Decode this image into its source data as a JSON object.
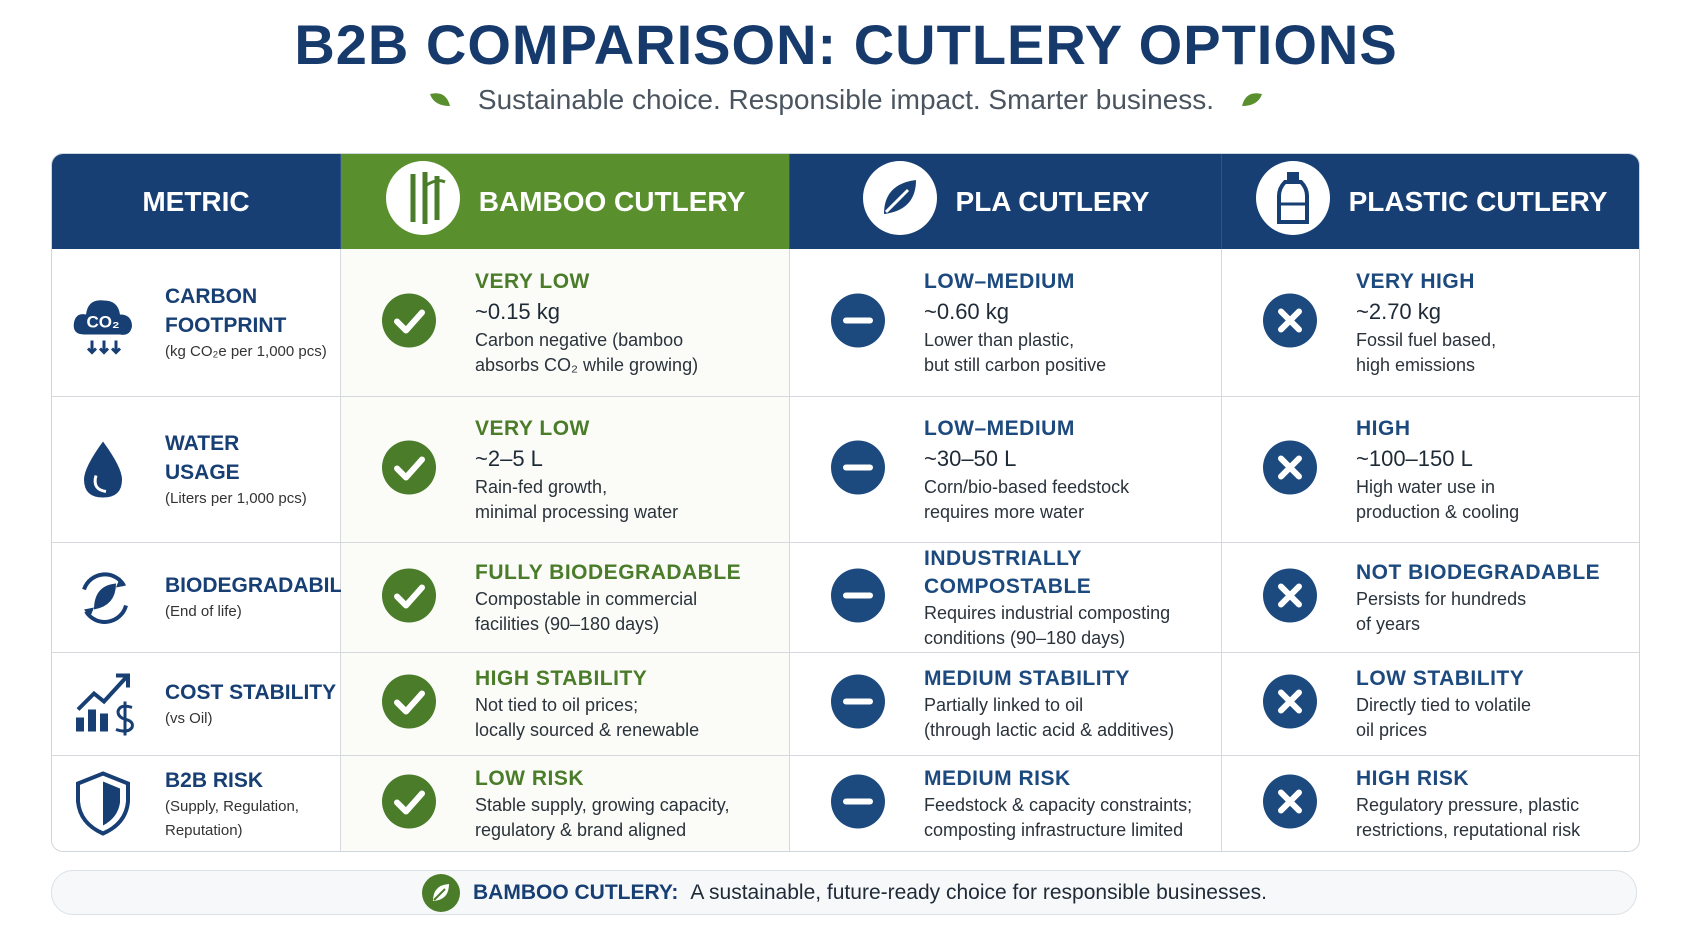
{
  "header": {
    "title": "B2B COMPARISON: CUTLERY OPTIONS",
    "subtitle": "Sustainable choice. Responsible impact. Smarter business."
  },
  "table": {
    "columns": [
      "METRIC",
      "BAMBOO CUTLERY",
      "PLA CUTLERY",
      "PLASTIC CUTLERY"
    ],
    "rows": [
      {
        "metric": [
          "CARBON",
          "FOOTPRINT"
        ],
        "unit": [
          "(kg CO₂e per 1,000 pcs)"
        ],
        "icon_text": "CO₂",
        "cells": [
          {
            "rating": "VERY LOW",
            "value": "~0.15 kg",
            "note": [
              "Carbon negative (bamboo",
              "absorbs CO₂ while growing)"
            ]
          },
          {
            "rating": "LOW–MEDIUM",
            "value": "~0.60 kg",
            "note": [
              "Lower than plastic,",
              "but still carbon positive"
            ]
          },
          {
            "rating": "VERY HIGH",
            "value": "~2.70 kg",
            "note": [
              "Fossil fuel based,",
              "high emissions"
            ]
          }
        ]
      },
      {
        "metric": [
          "WATER",
          "USAGE"
        ],
        "unit": [
          "(Liters per 1,000 pcs)"
        ],
        "cells": [
          {
            "rating": "VERY LOW",
            "value": "~2–5 L",
            "note": [
              "Rain-fed growth,",
              "minimal processing water"
            ]
          },
          {
            "rating": "LOW–MEDIUM",
            "value": "~30–50 L",
            "note": [
              "Corn/bio-based feedstock",
              "requires more water"
            ]
          },
          {
            "rating": "HIGH",
            "value": "~100–150 L",
            "note": [
              "High water use in",
              "production & cooling"
            ]
          }
        ]
      },
      {
        "metric": [
          "BIODEGRADABILITY"
        ],
        "unit": [
          "(End of life)"
        ],
        "cells": [
          {
            "rating": "FULLY BIODEGRADABLE",
            "note": [
              "Compostable in commercial",
              "facilities (90–180 days)"
            ]
          },
          {
            "rating": "INDUSTRIALLY COMPOSTABLE",
            "note": [
              "Requires industrial composting",
              "conditions (90–180 days)"
            ]
          },
          {
            "rating": "NOT BIODEGRADABLE",
            "note": [
              "Persists for hundreds",
              "of years"
            ]
          }
        ]
      },
      {
        "metric": [
          "COST STABILITY"
        ],
        "unit": [
          "(vs Oil)"
        ],
        "cells": [
          {
            "rating": "HIGH STABILITY",
            "note": [
              "Not tied to oil prices;",
              "locally sourced & renewable"
            ]
          },
          {
            "rating": "MEDIUM STABILITY",
            "note": [
              "Partially linked to oil",
              "(through lactic acid & additives)"
            ]
          },
          {
            "rating": "LOW STABILITY",
            "note": [
              "Directly tied to volatile",
              "oil prices"
            ]
          }
        ]
      },
      {
        "metric": [
          "B2B RISK"
        ],
        "unit": [
          "(Supply, Regulation,",
          "Reputation)"
        ],
        "cells": [
          {
            "rating": "LOW RISK",
            "note": [
              "Stable supply, growing capacity,",
              "regulatory & brand aligned"
            ]
          },
          {
            "rating": "MEDIUM RISK",
            "note": [
              "Feedstock & capacity constraints;",
              "composting infrastructure limited"
            ]
          },
          {
            "rating": "HIGH RISK",
            "note": [
              "Regulatory pressure, plastic",
              "restrictions, reputational risk"
            ]
          }
        ]
      }
    ]
  },
  "footer": {
    "label": "BAMBOO CUTLERY:",
    "text": "A sustainable, future-ready choice for responsible businesses."
  }
}
